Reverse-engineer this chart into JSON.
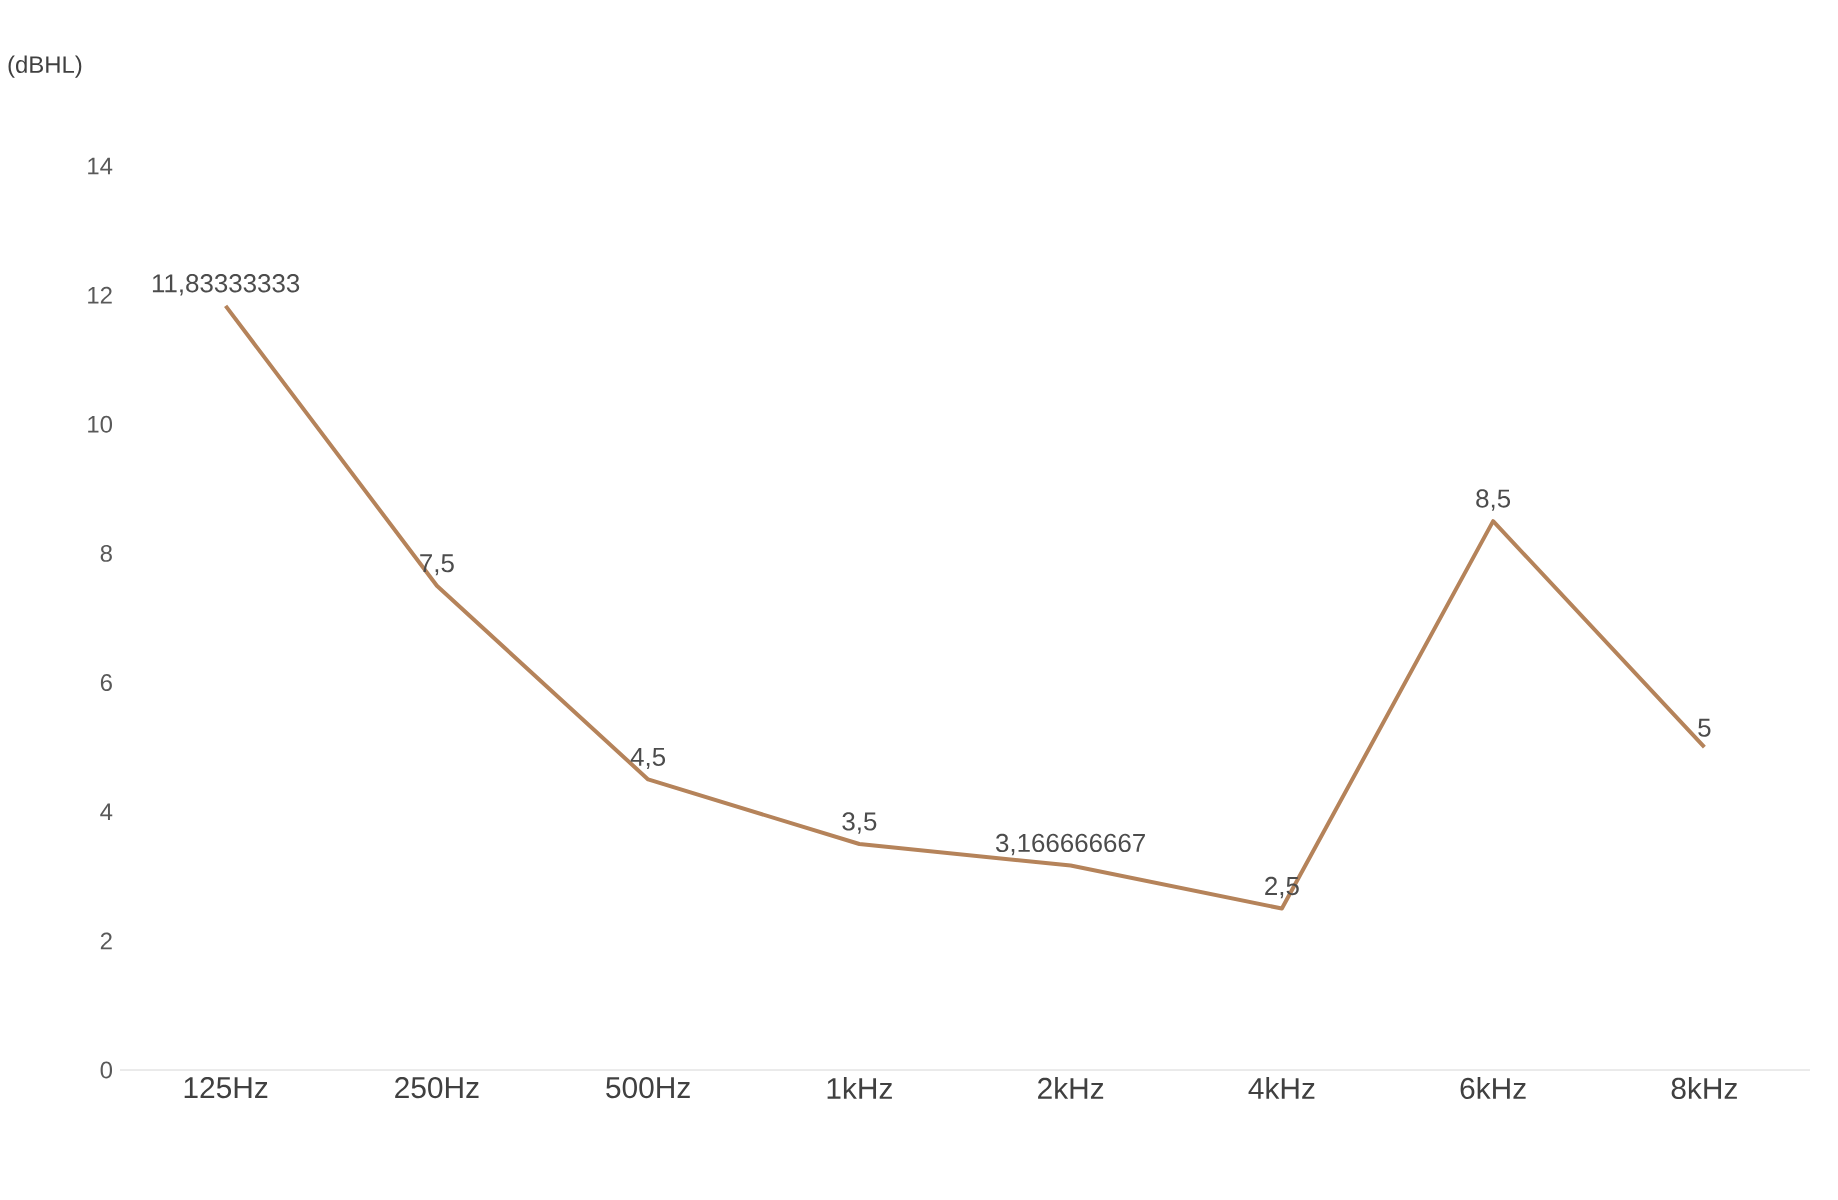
{
  "chart_data": {
    "type": "line",
    "ylabel": "(dBHL)",
    "categories": [
      "125Hz",
      "250Hz",
      "500Hz",
      "1kHz",
      "2kHz",
      "4kHz",
      "6kHz",
      "8kHz"
    ],
    "series": [
      {
        "color": "#b5835a",
        "values": [
          11.83333333,
          7.5,
          4.5,
          3.5,
          3.166666667,
          2.5,
          8.5,
          5
        ],
        "value_labels": [
          "11,83333333",
          "7,5",
          "4,5",
          "3,5",
          "3,166666667",
          "2,5",
          "8,5",
          "5"
        ]
      }
    ],
    "ylim": [
      0,
      14
    ],
    "yticks": [
      0,
      2,
      4,
      6,
      8,
      10,
      12,
      14
    ],
    "marker": "none",
    "line_style": "solid",
    "grid": false
  }
}
